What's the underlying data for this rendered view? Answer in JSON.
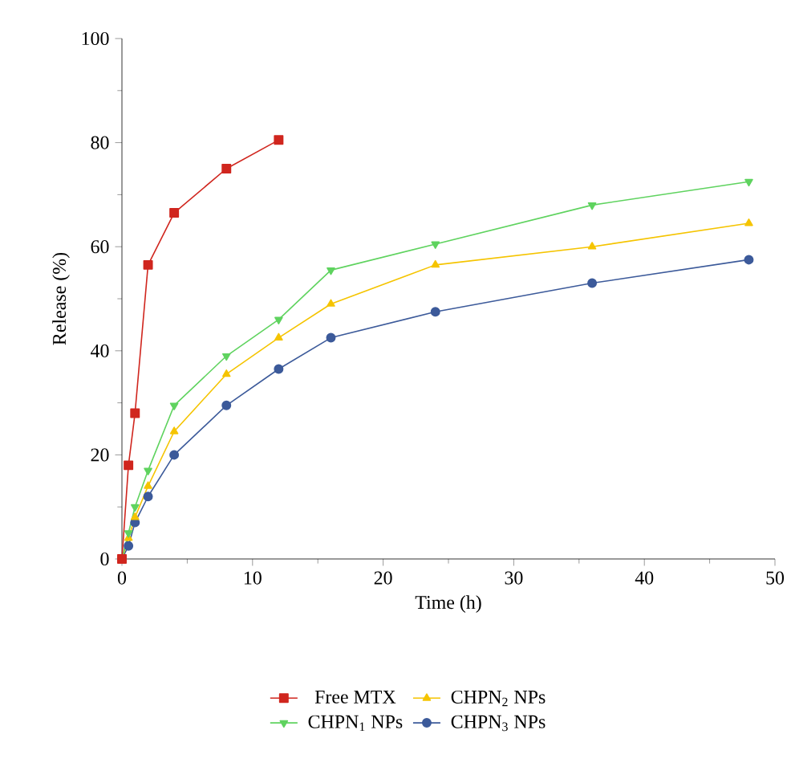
{
  "chart_data": {
    "type": "line",
    "xlabel": "Time (h)",
    "ylabel": "Release (%)",
    "xlim": [
      0,
      50
    ],
    "ylim": [
      0,
      100
    ],
    "xticks": [
      0,
      10,
      20,
      30,
      40,
      50
    ],
    "yticks": [
      0,
      20,
      40,
      60,
      80,
      100
    ],
    "grid": false,
    "legend": "bottom",
    "series": [
      {
        "name": "Free MTX",
        "color": "#d0261e",
        "marker": "square",
        "x": [
          0,
          0.5,
          1,
          2,
          4,
          8,
          12
        ],
        "values": [
          0,
          18,
          28,
          56.5,
          66.5,
          75,
          80.5
        ]
      },
      {
        "name": "CHPN$_{1}$ NPs",
        "color": "#5fd35f",
        "marker": "triangle-down",
        "x": [
          0,
          0.5,
          1,
          2,
          4,
          8,
          12,
          16,
          24,
          36,
          48
        ],
        "values": [
          0,
          5,
          10,
          17,
          29.5,
          39,
          46,
          55.5,
          60.5,
          68,
          72.5
        ]
      },
      {
        "name": "CHPN$_{2}$ NPs",
        "color": "#f5c400",
        "marker": "triangle",
        "x": [
          0,
          0.5,
          1,
          2,
          4,
          8,
          12,
          16,
          24,
          36,
          48
        ],
        "values": [
          0,
          4,
          8,
          14,
          24.5,
          35.5,
          42.5,
          49,
          56.5,
          60,
          64.5
        ]
      },
      {
        "name": "CHPN$_{3}$ NPs",
        "color": "#3c5a9a",
        "marker": "circle",
        "x": [
          0,
          0.5,
          1,
          2,
          4,
          8,
          12,
          16,
          24,
          36,
          48
        ],
        "values": [
          0,
          2.5,
          7,
          12,
          20,
          29.5,
          36.5,
          42.5,
          47.5,
          53,
          57.5
        ]
      }
    ]
  }
}
